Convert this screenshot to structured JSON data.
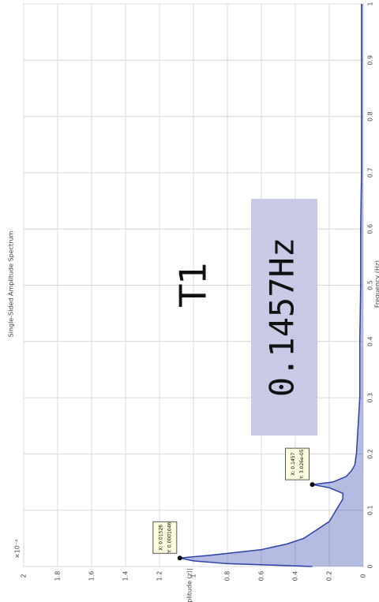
{
  "chart_data": {
    "type": "line",
    "title": "Single-Sided Amplitude Spectrum",
    "x_label": "Frequency (Hz)",
    "y_label": "|Amplitude (z)|",
    "y_exponent": "×10⁻⁴",
    "x": [
      0,
      0.005,
      0.01,
      0.015,
      0.02,
      0.03,
      0.04,
      0.05,
      0.06,
      0.07,
      0.08,
      0.09,
      0.1,
      0.11,
      0.12,
      0.13,
      0.14,
      0.1457,
      0.15,
      0.16,
      0.17,
      0.18,
      0.2,
      0.25,
      0.3,
      0.4,
      0.5,
      0.6,
      0.7,
      0.8,
      0.9,
      1.0
    ],
    "values": [
      0.3,
      0.8,
      1.0,
      1.08,
      0.9,
      0.6,
      0.45,
      0.35,
      0.3,
      0.25,
      0.2,
      0.18,
      0.16,
      0.14,
      0.12,
      0.12,
      0.2,
      0.3,
      0.18,
      0.1,
      0.07,
      0.05,
      0.04,
      0.03,
      0.02,
      0.02,
      0.015,
      0.015,
      0.01,
      0.01,
      0.01,
      0.01
    ],
    "color": "#2b3fa8",
    "xlim": [
      0,
      1
    ],
    "xticks": [
      0,
      0.1,
      0.2,
      0.3,
      0.4,
      0.5,
      0.6,
      0.7,
      0.8,
      0.9,
      1
    ],
    "ylim": [
      0,
      2
    ],
    "yticks": [
      0,
      0.2,
      0.4,
      0.6,
      0.8,
      1,
      1.2,
      1.4,
      1.6,
      1.8,
      2
    ],
    "grid": true,
    "datatips": [
      {
        "index": 3,
        "lines": [
          "X: 0.01526",
          "Y: 0.0001046"
        ]
      },
      {
        "index": 17,
        "lines": [
          "X: 0.1457",
          "Y: 3.026e-05"
        ]
      }
    ],
    "annotations": [
      "T1",
      "0.1457Hz"
    ]
  }
}
